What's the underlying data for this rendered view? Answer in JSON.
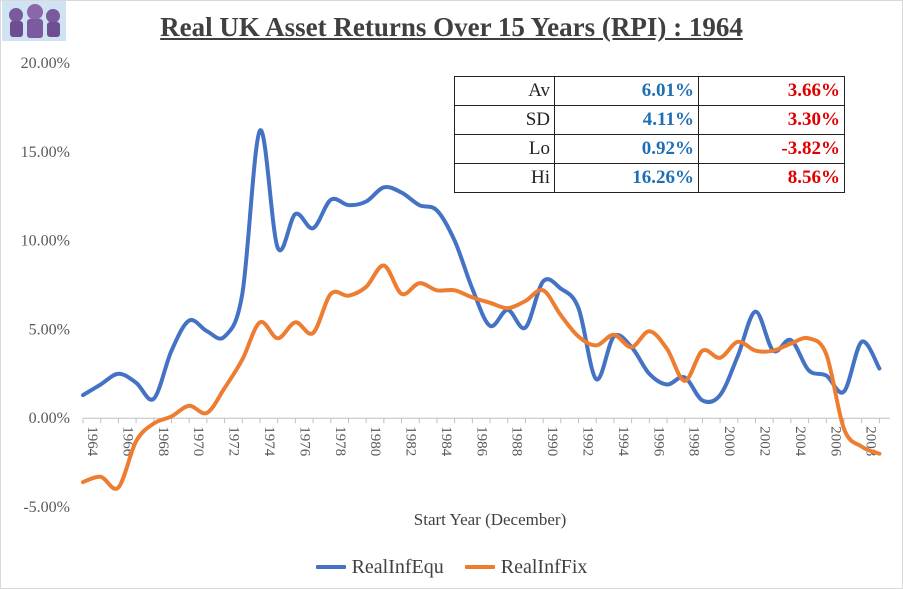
{
  "title": "Real UK Asset Returns Over 15 Years (RPI) : 1964",
  "legend_items": [
    "RealInfEqu",
    "RealInfFix"
  ],
  "colors": {
    "equ": "#4472C4",
    "fix": "#ED7D31",
    "stat_equ": "#1F6FB5",
    "stat_fix": "#E00000"
  },
  "stats": {
    "rows": [
      {
        "label": "Av",
        "equ": "6.01%",
        "fix": "3.66%"
      },
      {
        "label": "SD",
        "equ": "4.11%",
        "fix": "3.30%"
      },
      {
        "label": "Lo",
        "equ": "0.92%",
        "fix": "-3.82%"
      },
      {
        "label": "Hi",
        "equ": "16.26%",
        "fix": "8.56%"
      }
    ]
  },
  "chart_data": {
    "type": "line",
    "title": "Real UK Asset Returns Over 15 Years (RPI) : 1964",
    "xlabel": "Start Year (December)",
    "ylabel": "",
    "ylim": [
      -5,
      20
    ],
    "xlim": [
      1964,
      2009.6
    ],
    "y_tick_labels": [
      "-5.00%",
      "0.00%",
      "5.00%",
      "10.00%",
      "15.00%",
      "20.00%"
    ],
    "y_tick_values": [
      -5,
      0,
      5,
      10,
      15,
      20
    ],
    "x_tick_labels": [
      "1964",
      "1966",
      "1968",
      "1970",
      "1972",
      "1974",
      "1976",
      "1978",
      "1980",
      "1982",
      "1984",
      "1986",
      "1988",
      "1990",
      "1992",
      "1994",
      "1996",
      "1998",
      "2000",
      "2002",
      "2004",
      "2006",
      "2008"
    ],
    "x_tick_values": [
      1964,
      1966,
      1968,
      1970,
      1972,
      1974,
      1976,
      1978,
      1980,
      1982,
      1984,
      1986,
      1988,
      1990,
      1992,
      1994,
      1996,
      1998,
      2000,
      2002,
      2004,
      2006,
      2008
    ],
    "x": [
      1964,
      1965,
      1966,
      1967,
      1968,
      1969,
      1970,
      1971,
      1972,
      1973,
      1974,
      1975,
      1976,
      1977,
      1978,
      1979,
      1980,
      1981,
      1982,
      1983,
      1984,
      1985,
      1986,
      1987,
      1988,
      1989,
      1990,
      1991,
      1992,
      1993,
      1994,
      1995,
      1996,
      1997,
      1998,
      1999,
      2000,
      2001,
      2002,
      2003,
      2004,
      2005,
      2006,
      2007,
      2008,
      2009
    ],
    "series": [
      {
        "name": "RealInfEqu",
        "values": [
          1.3,
          1.9,
          2.5,
          2.0,
          1.1,
          3.8,
          5.5,
          4.9,
          4.6,
          7.0,
          16.2,
          9.6,
          11.5,
          10.7,
          12.3,
          12.0,
          12.2,
          13.0,
          12.7,
          12.0,
          11.7,
          10.0,
          7.3,
          5.2,
          6.1,
          5.1,
          7.7,
          7.3,
          6.2,
          2.2,
          4.6,
          4.0,
          2.5,
          1.9,
          2.3,
          1.0,
          1.3,
          3.5,
          6.0,
          3.8,
          4.4,
          2.7,
          2.4,
          1.5,
          4.3,
          2.8
        ]
      },
      {
        "name": "RealInfFix",
        "values": [
          -3.6,
          -3.3,
          -3.9,
          -1.3,
          -0.3,
          0.1,
          0.7,
          0.3,
          1.7,
          3.3,
          5.4,
          4.5,
          5.4,
          4.8,
          7.0,
          6.9,
          7.4,
          8.6,
          7.0,
          7.6,
          7.2,
          7.2,
          6.8,
          6.5,
          6.2,
          6.6,
          7.2,
          5.8,
          4.6,
          4.1,
          4.7,
          4.0,
          4.9,
          3.9,
          2.1,
          3.8,
          3.4,
          4.3,
          3.8,
          3.8,
          4.2,
          4.5,
          3.6,
          -0.6,
          -1.6,
          -2.0
        ]
      }
    ]
  }
}
